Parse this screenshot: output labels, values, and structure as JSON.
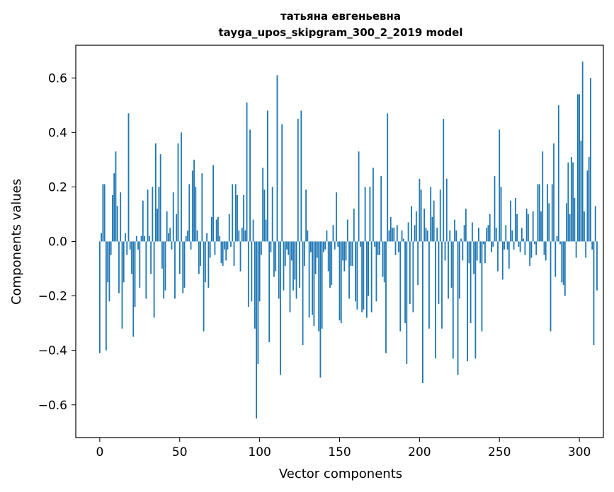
{
  "chart_data": {
    "type": "bar",
    "title": "татьяна евгеньевна",
    "subtitle": "tayga_upos_skipgram_300_2_2019 model",
    "xlabel": "Vector components",
    "ylabel": "Components values",
    "xlim": [
      -15,
      315
    ],
    "ylim": [
      -0.72,
      0.72
    ],
    "xticks": [
      0,
      50,
      100,
      150,
      200,
      250,
      300
    ],
    "yticks": [
      -0.6,
      -0.4,
      -0.2,
      0.0,
      0.2,
      0.4,
      0.6
    ],
    "ytick_labels": [
      "−0.6",
      "−0.4",
      "−0.2",
      "0.0",
      "0.2",
      "0.4",
      "0.6"
    ],
    "grid": false,
    "bar_color": "#1f77b4",
    "values": [
      -0.41,
      0.03,
      0.21,
      0.21,
      -0.4,
      -0.15,
      -0.22,
      -0.05,
      0.17,
      0.25,
      0.33,
      0.13,
      -0.19,
      0.18,
      -0.32,
      -0.15,
      0.03,
      -0.05,
      0.47,
      -0.03,
      -0.12,
      -0.35,
      -0.24,
      0.02,
      -0.03,
      -0.17,
      0.02,
      0.15,
      0.02,
      -0.21,
      0.19,
      0.02,
      -0.12,
      0.2,
      -0.28,
      0.36,
      0.12,
      0.2,
      0.32,
      -0.1,
      -0.21,
      -0.18,
      0.11,
      0.03,
      0.05,
      -0.03,
      0.18,
      -0.21,
      0.1,
      0.36,
      -0.12,
      0.4,
      -0.19,
      -0.17,
      0.02,
      0.04,
      0.21,
      -0.03,
      0.26,
      0.3,
      0.2,
      0.04,
      -0.12,
      -0.09,
      0.25,
      -0.33,
      -0.15,
      0.03,
      -0.17,
      -0.06,
      0.09,
      0.28,
      -0.05,
      0.08,
      0.09,
      0.02,
      -0.08,
      -0.09,
      -0.03,
      -0.07,
      -0.03,
      0.1,
      -0.02,
      0.21,
      -0.09,
      0.21,
      0.17,
      0.04,
      -0.11,
      0.05,
      0.17,
      0.04,
      0.51,
      -0.24,
      0.41,
      -0.22,
      0.08,
      -0.32,
      -0.65,
      -0.45,
      -0.22,
      -0.05,
      0.27,
      0.19,
      0.08,
      0.48,
      -0.37,
      -0.04,
      0.2,
      -0.13,
      -0.11,
      0.61,
      -0.21,
      -0.49,
      0.43,
      -0.18,
      -0.09,
      -0.03,
      -0.05,
      -0.26,
      -0.07,
      -0.18,
      -0.14,
      -0.21,
      0.45,
      -0.17,
      0.48,
      -0.38,
      -0.09,
      0.19,
      0.04,
      -0.28,
      -0.04,
      -0.27,
      -0.31,
      -0.12,
      -0.06,
      -0.33,
      -0.5,
      -0.32,
      -0.04,
      -0.03,
      0.04,
      -0.11,
      -0.17,
      -0.16,
      0.06,
      -0.03,
      0.18,
      -0.02,
      -0.29,
      -0.3,
      -0.07,
      -0.11,
      -0.07,
      0.08,
      -0.21,
      -0.09,
      -0.09,
      0.12,
      -0.22,
      -0.25,
      0.33,
      -0.02,
      -0.26,
      -0.25,
      0.2,
      -0.28,
      -0.2,
      0.2,
      -0.26,
      0.27,
      -0.02,
      -0.22,
      -0.05,
      -0.05,
      0.24,
      -0.13,
      -0.15,
      -0.41,
      0.47,
      0.04,
      0.09,
      0.05,
      0.05,
      -0.05,
      0.06,
      -0.04,
      -0.33,
      0.04,
      0.01,
      -0.3,
      -0.45,
      0.07,
      -0.23,
      0.13,
      -0.26,
      0.06,
      0.11,
      -0.16,
      0.23,
      0.19,
      -0.52,
      0.12,
      0.05,
      0.04,
      -0.32,
      0.2,
      0.09,
      0.15,
      -0.43,
      0.05,
      -0.23,
      0.19,
      -0.32,
      0.45,
      -0.07,
      0.23,
      -0.21,
      0.04,
      -0.17,
      -0.43,
      0.08,
      0.04,
      -0.49,
      -0.21,
      0.01,
      -0.07,
      0.06,
      0.12,
      -0.44,
      -0.08,
      -0.3,
      0.07,
      -0.12,
      -0.43,
      -0.07,
      0.05,
      -0.08,
      -0.33,
      -0.01,
      -0.08,
      0.05,
      0.06,
      0.1,
      -0.04,
      -0.02,
      0.24,
      0.05,
      -0.11,
      0.41,
      0.2,
      -0.14,
      -0.03,
      0.06,
      -0.03,
      -0.1,
      0.15,
      0.04,
      -0.03,
      0.16,
      0.1,
      -0.02,
      -0.04,
      0.05,
      0.01,
      -0.05,
      0.12,
      0.1,
      -0.09,
      -0.06,
      0.11,
      -0.01,
      -0.05,
      0.21,
      0.21,
      0.11,
      0.33,
      -0.05,
      -0.07,
      0.21,
      0.14,
      -0.33,
      0.21,
      0.36,
      -0.13,
      0.02,
      0.5,
      -0.01,
      -0.15,
      -0.16,
      -0.2,
      0.14,
      0.29,
      0.1,
      0.31,
      0.29,
      0.16,
      -0.06,
      0.54,
      0.54,
      0.37,
      0.66,
      0.11,
      -0.06,
      0.26,
      0.31,
      0.6,
      -0.03,
      -0.38,
      0.13,
      -0.18
    ]
  }
}
